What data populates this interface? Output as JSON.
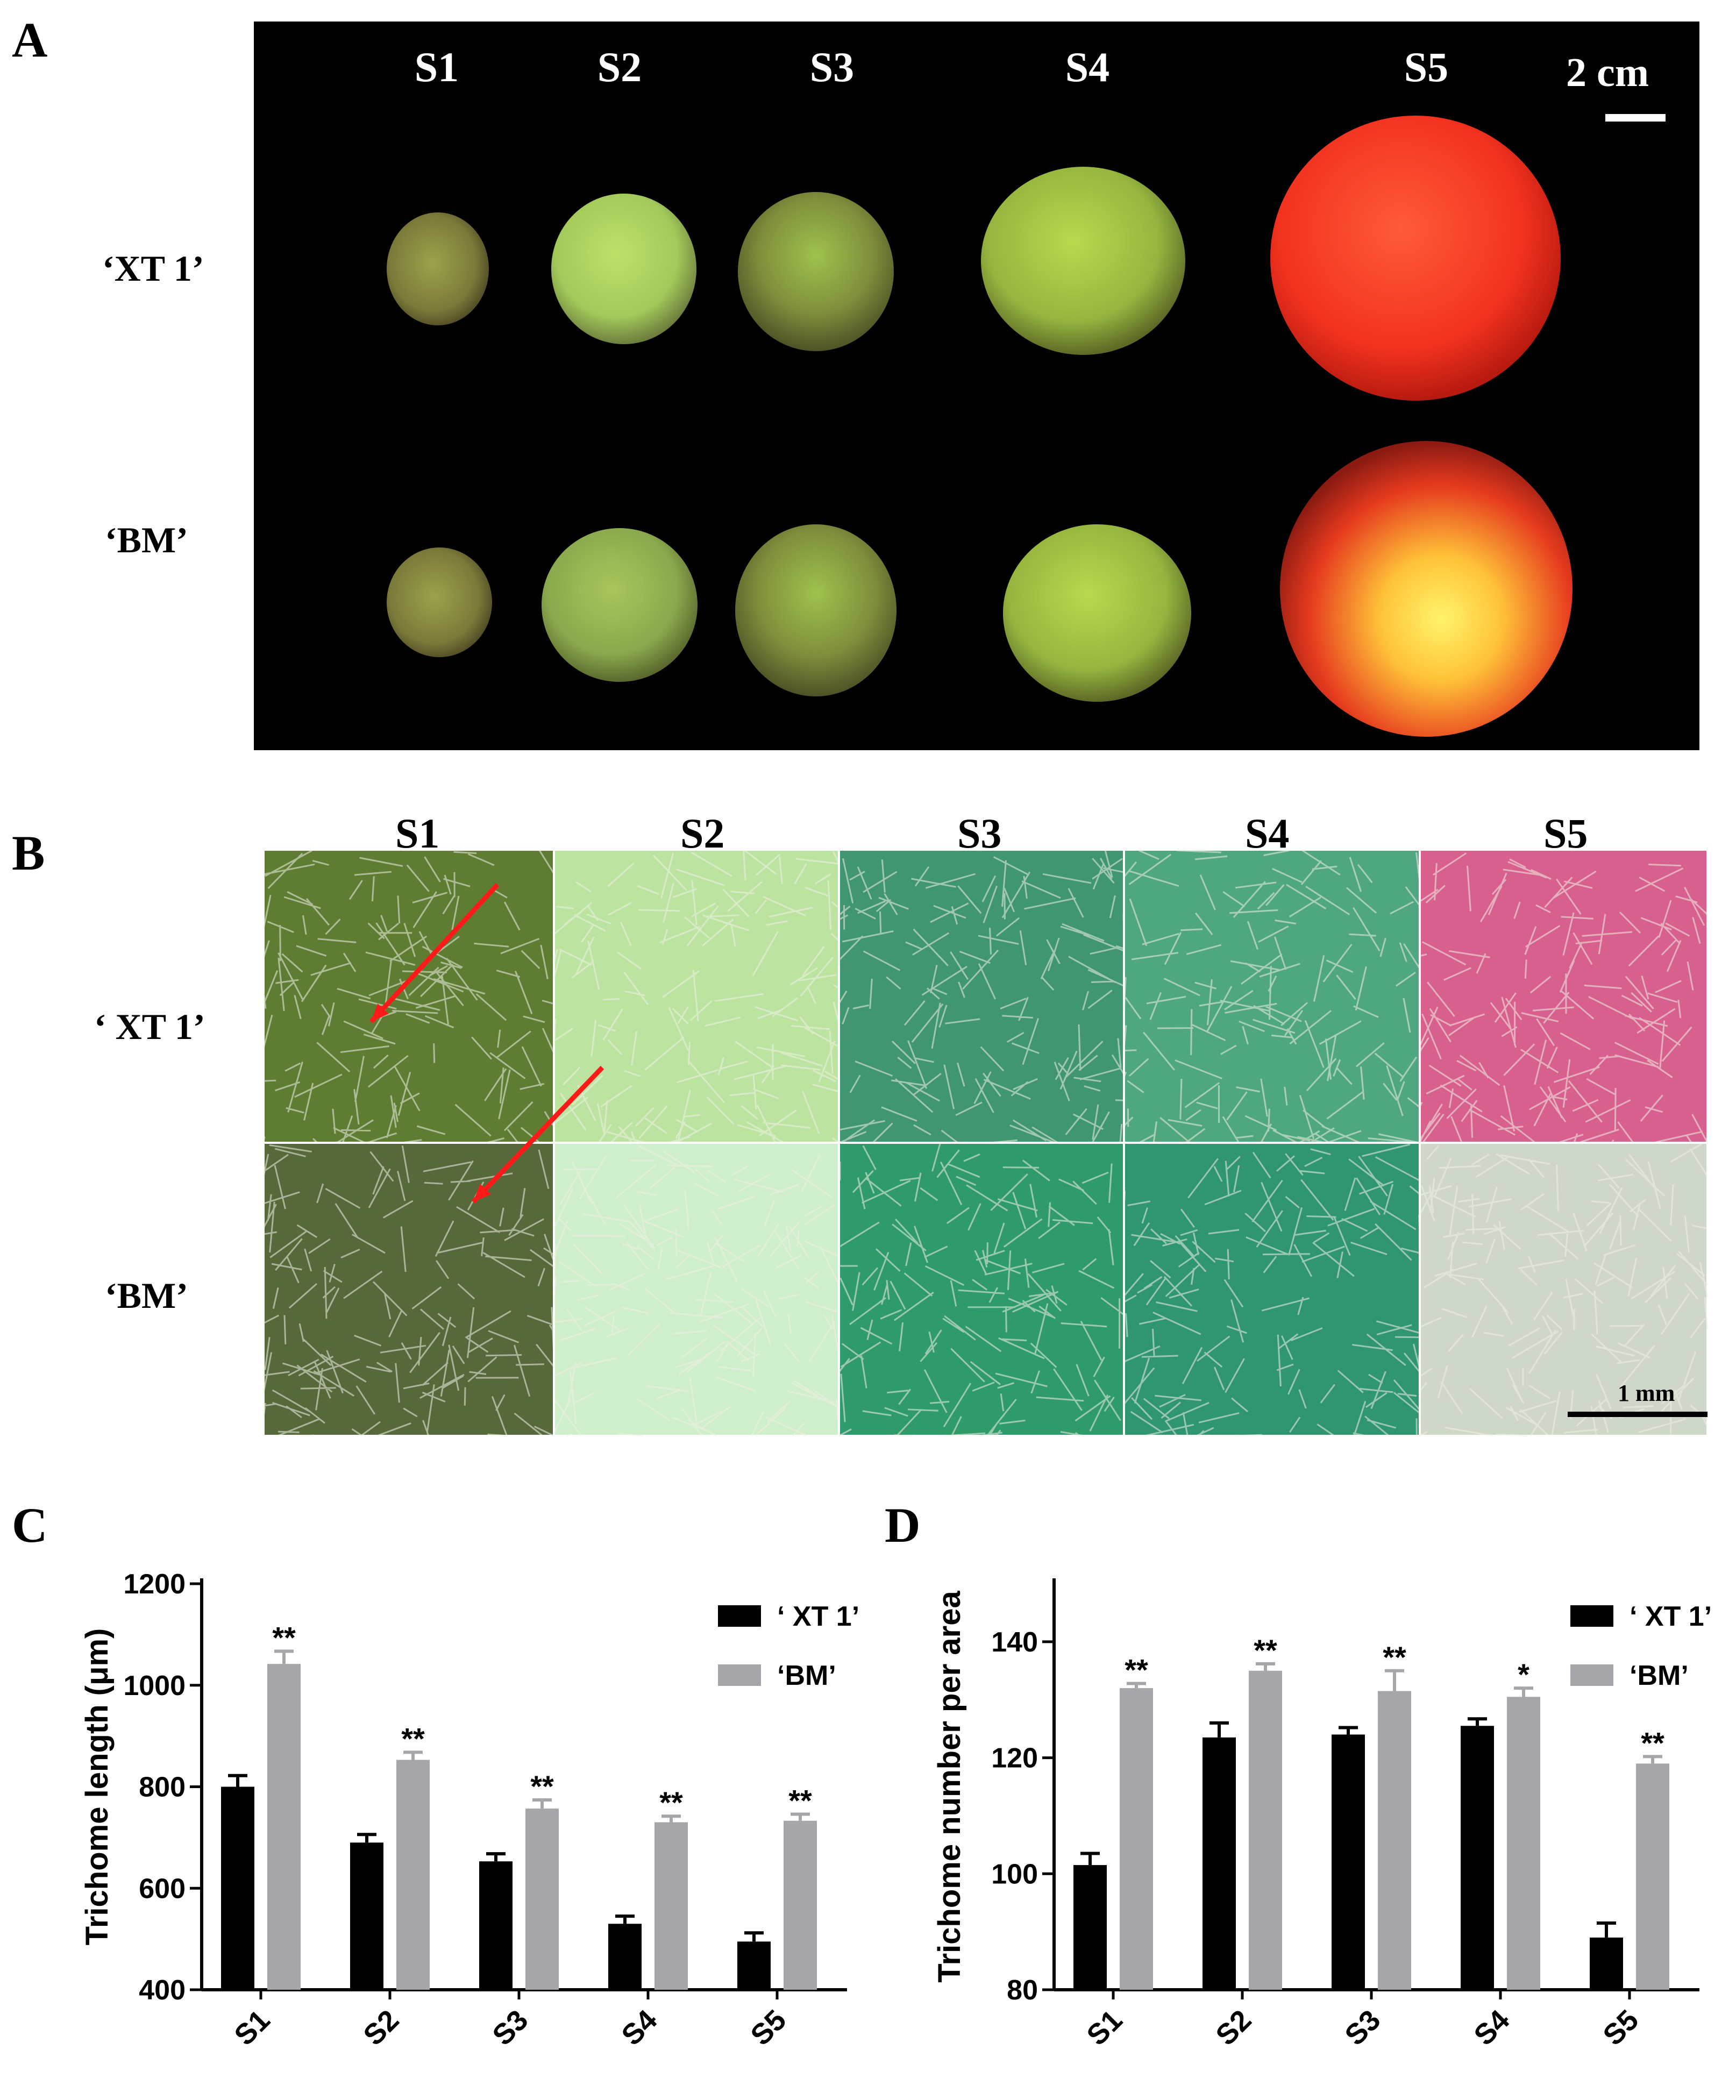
{
  "panels": {
    "A": {
      "letter": "A",
      "stages": [
        "S1",
        "S2",
        "S3",
        "S4",
        "S5"
      ],
      "rows": [
        "‘XT 1’",
        "‘BM’"
      ],
      "scale_bar": "2 cm"
    },
    "B": {
      "letter": "B",
      "stages": [
        "S1",
        "S2",
        "S3",
        "S4",
        "S5"
      ],
      "rows": [
        "‘ XT 1’",
        "‘BM’"
      ],
      "scale_bar": "1 mm",
      "tile_colors": {
        "xt1": [
          "#5e7d33",
          "#bce4a0",
          "#3f9670",
          "#4fa77f",
          "#d8608e"
        ],
        "bm": [
          "#57683a",
          "#cfeecb",
          "#2f9a6c",
          "#2f9670",
          "#cfd8c8"
        ]
      },
      "arrow_color": "#ff1a1a"
    },
    "C": {
      "letter": "C"
    },
    "D": {
      "letter": "D"
    }
  },
  "chart_data": [
    {
      "type": "bar",
      "ylabel": "Trichome length (μm)",
      "xlabel": "",
      "categories": [
        "S1",
        "S2",
        "S3",
        "S4",
        "S5"
      ],
      "ylim": [
        400,
        1200
      ],
      "yticks": [
        "400",
        "600",
        "800",
        "1000",
        "1200"
      ],
      "series": [
        {
          "name": "‘ XT 1’",
          "color": "#000000",
          "values": [
            800,
            690,
            653,
            530,
            495
          ],
          "errors": [
            22,
            16,
            15,
            15,
            17
          ]
        },
        {
          "name": "‘BM’",
          "color": "#a6a6aa",
          "values": [
            1042,
            853,
            757,
            730,
            733
          ],
          "errors": [
            25,
            15,
            17,
            12,
            13
          ]
        }
      ],
      "significance": [
        "**",
        "**",
        "**",
        "**",
        "**"
      ],
      "legend": "top-right"
    },
    {
      "type": "bar",
      "ylabel": "Trichome number per area",
      "xlabel": "",
      "categories": [
        "S1",
        "S2",
        "S3",
        "S4",
        "S5"
      ],
      "ylim": [
        80,
        150
      ],
      "yticks": [
        "80",
        "100",
        "120",
        "140"
      ],
      "series": [
        {
          "name": "‘ XT 1’",
          "color": "#000000",
          "values": [
            101.5,
            123.5,
            124,
            125.5,
            89
          ],
          "errors": [
            2,
            2.5,
            1.2,
            1.2,
            2.5
          ]
        },
        {
          "name": "‘BM’",
          "color": "#a6a6aa",
          "values": [
            132,
            135,
            131.5,
            130.5,
            119
          ],
          "errors": [
            0.8,
            1.2,
            3.5,
            1.5,
            1.2
          ]
        }
      ],
      "significance": [
        "**",
        "**",
        "**",
        "*",
        "**"
      ],
      "legend": "top-right"
    }
  ]
}
